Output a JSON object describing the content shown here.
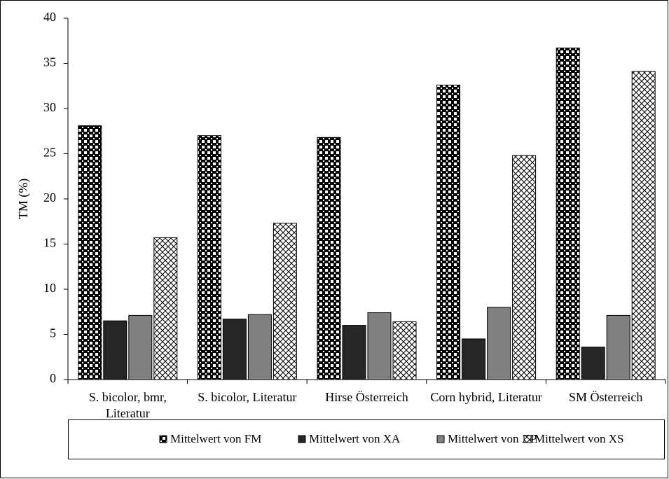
{
  "chart_data": {
    "type": "bar",
    "ylabel": "TM (%)",
    "categories": [
      "S. bicolor, bmr, Literatur",
      "S. bicolor, Literatur",
      "Hirse Österreich",
      "Corn hybrid, Literatur",
      "SM Österreich"
    ],
    "series": [
      {
        "name": "Mittelwert von FM",
        "color": "#000000",
        "values": [
          28.1,
          27.0,
          26.8,
          32.6,
          36.7
        ]
      },
      {
        "name": "Mittelwert von XA",
        "color": "#262626",
        "values": [
          6.5,
          6.7,
          6.0,
          4.5,
          3.6
        ]
      },
      {
        "name": "Mittelwert von XP",
        "color": "#808080",
        "values": [
          7.1,
          7.2,
          7.4,
          8.0,
          7.1
        ]
      },
      {
        "name": "Mittelwert von XS",
        "color": "#ffffff",
        "values": [
          15.7,
          17.3,
          6.4,
          24.8,
          34.1
        ]
      }
    ],
    "ylim": [
      0,
      40
    ],
    "yticks": [
      0,
      5,
      10,
      15,
      20,
      25,
      30,
      35,
      40
    ],
    "grid": false,
    "legend": "bottom"
  }
}
